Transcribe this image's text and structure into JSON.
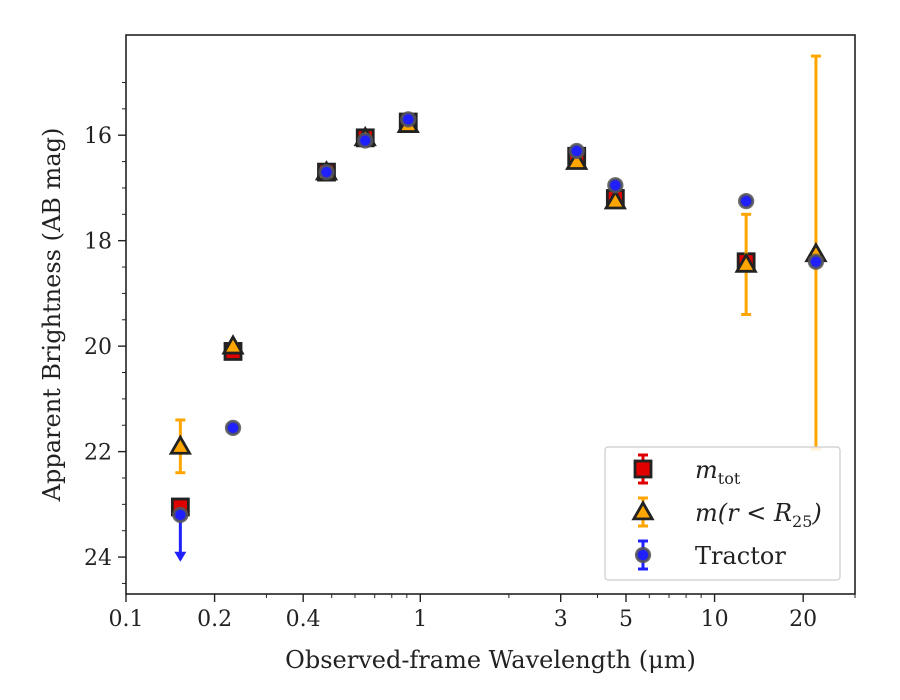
{
  "chart_data": {
    "type": "scatter",
    "xlabel": "Observed-frame Wavelength (μm)",
    "ylabel": "Apparent Brightness (AB mag)",
    "x_scale": "log",
    "xlim": [
      0.1,
      30
    ],
    "ylim": [
      24.7,
      14.1
    ],
    "y_inverted": true,
    "x_ticks": [
      {
        "value": 0.1,
        "label": "0.1"
      },
      {
        "value": 0.2,
        "label": "0.2"
      },
      {
        "value": 0.4,
        "label": "0.4"
      },
      {
        "value": 1,
        "label": "1"
      },
      {
        "value": 3,
        "label": "3"
      },
      {
        "value": 5,
        "label": "5"
      },
      {
        "value": 10,
        "label": "10"
      },
      {
        "value": 20,
        "label": "20"
      }
    ],
    "y_ticks": [
      {
        "value": 16,
        "label": "16"
      },
      {
        "value": 18,
        "label": "18"
      },
      {
        "value": 20,
        "label": "20"
      },
      {
        "value": 22,
        "label": "22"
      },
      {
        "value": 24,
        "label": "24"
      }
    ],
    "legend_position": "bottom-right",
    "series": [
      {
        "name": "m_tot",
        "legend_main": "m",
        "legend_sub": "tot",
        "marker": "square",
        "face_color": "#e00000",
        "edge_color": "#222222",
        "errbar_color": "#e00000",
        "points": [
          {
            "x": 0.153,
            "y": 23.05,
            "err": 0.1
          },
          {
            "x": 0.231,
            "y": 20.1,
            "err": 0.1
          },
          {
            "x": 0.48,
            "y": 16.7,
            "err": 0.1
          },
          {
            "x": 0.65,
            "y": 16.05,
            "err": 0.1
          },
          {
            "x": 0.91,
            "y": 15.75,
            "err": 0.1
          },
          {
            "x": 3.4,
            "y": 16.4,
            "err": 0.1
          },
          {
            "x": 4.6,
            "y": 17.2,
            "err": 0.1
          },
          {
            "x": 12.8,
            "y": 18.4,
            "err": 0.1
          }
        ]
      },
      {
        "name": "m(r<R25)",
        "legend_main": "m(r < R",
        "legend_sub": "25",
        "legend_end": ")",
        "marker": "triangle",
        "face_color": "#ffa500",
        "edge_color": "#222222",
        "errbar_color": "#ffa500",
        "points": [
          {
            "x": 0.153,
            "y": 21.9,
            "err": 0.5
          },
          {
            "x": 0.231,
            "y": 20.0,
            "err": 0.05
          },
          {
            "x": 0.48,
            "y": 16.7,
            "err": 0.05
          },
          {
            "x": 0.65,
            "y": 16.05,
            "err": 0.05
          },
          {
            "x": 0.91,
            "y": 15.8,
            "err": 0.05
          },
          {
            "x": 3.4,
            "y": 16.5,
            "err": 0.05
          },
          {
            "x": 4.6,
            "y": 17.25,
            "err": 0.05
          },
          {
            "x": 12.8,
            "y": 18.45,
            "err": 0.95
          },
          {
            "x": 22.1,
            "y": 18.25,
            "err_low": 3.75,
            "err_high": 3.7
          }
        ]
      },
      {
        "name": "Tractor",
        "legend_main": "Tractor",
        "marker": "circle",
        "face_color": "#1f1fff",
        "edge_color": "#555555",
        "errbar_color": "#2020ff",
        "points": [
          {
            "x": 0.153,
            "y": 23.2,
            "upper_limit": true
          },
          {
            "x": 0.231,
            "y": 21.55,
            "err": 0.05
          },
          {
            "x": 0.48,
            "y": 16.7,
            "err": 0.05
          },
          {
            "x": 0.65,
            "y": 16.1,
            "err": 0.05
          },
          {
            "x": 0.91,
            "y": 15.7,
            "err": 0.05
          },
          {
            "x": 3.4,
            "y": 16.3,
            "err": 0.05
          },
          {
            "x": 4.6,
            "y": 16.95,
            "err": 0.05
          },
          {
            "x": 12.8,
            "y": 17.25,
            "err": 0.05
          },
          {
            "x": 22.1,
            "y": 18.4,
            "err": 0.05
          }
        ]
      }
    ]
  }
}
